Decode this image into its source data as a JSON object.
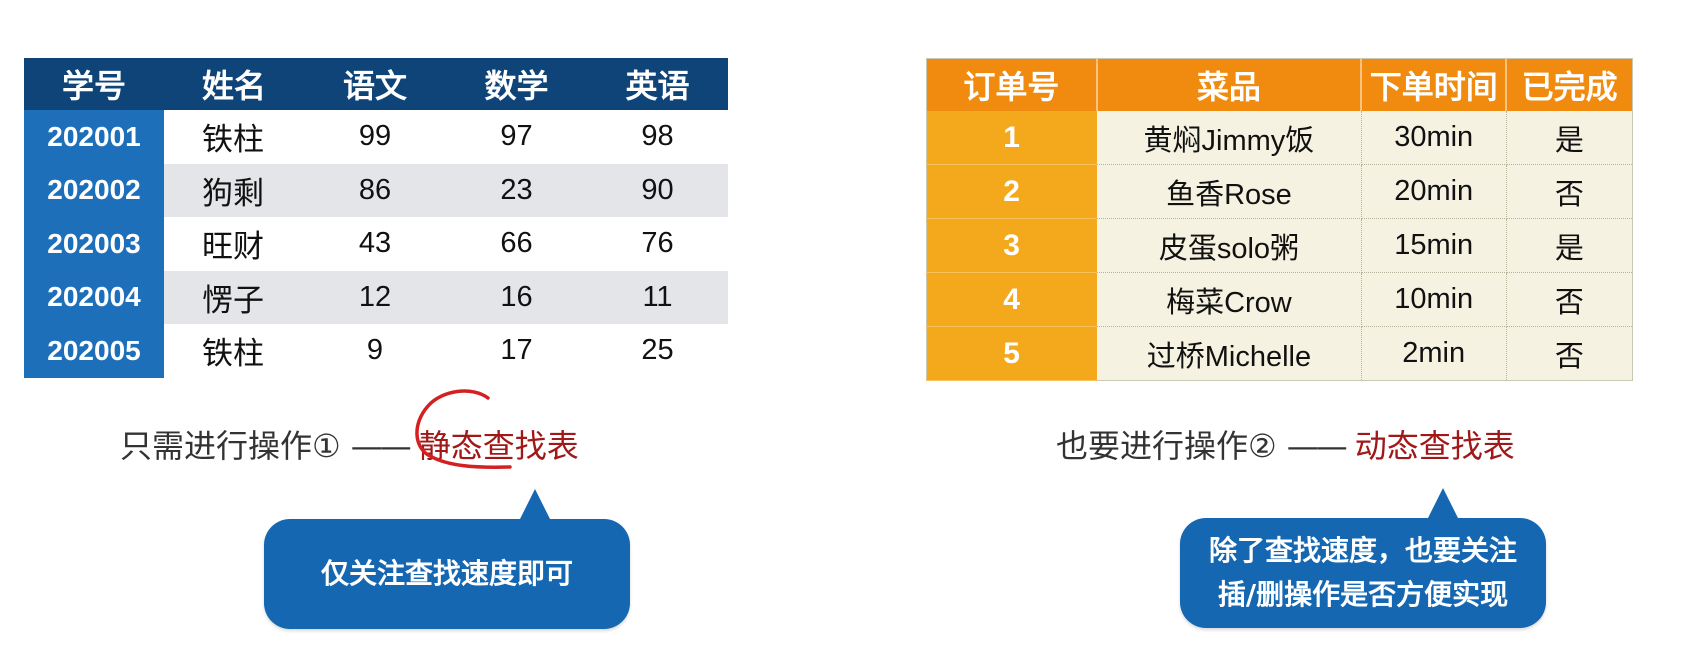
{
  "score_table": {
    "headers": [
      "学号",
      "姓名",
      "语文",
      "数学",
      "英语"
    ],
    "rows": [
      {
        "id": "202001",
        "name": "铁柱",
        "chinese": "99",
        "math": "97",
        "english": "98"
      },
      {
        "id": "202002",
        "name": "狗剩",
        "chinese": "86",
        "math": "23",
        "english": "90"
      },
      {
        "id": "202003",
        "name": "旺财",
        "chinese": "43",
        "math": "66",
        "english": "76"
      },
      {
        "id": "202004",
        "name": "愣子",
        "chinese": "12",
        "math": "16",
        "english": "11"
      },
      {
        "id": "202005",
        "name": "铁柱",
        "chinese": "9",
        "math": "17",
        "english": "25"
      }
    ]
  },
  "order_table": {
    "headers": [
      "订单号",
      "菜品",
      "下单时间",
      "已完成"
    ],
    "rows": [
      {
        "order": "1",
        "dish": "黄焖Jimmy饭",
        "time": "30min",
        "done": "是"
      },
      {
        "order": "2",
        "dish": "鱼香Rose",
        "time": "20min",
        "done": "否"
      },
      {
        "order": "3",
        "dish": "皮蛋solo粥",
        "time": "15min",
        "done": "是"
      },
      {
        "order": "4",
        "dish": "梅菜Crow",
        "time": "10min",
        "done": "否"
      },
      {
        "order": "5",
        "dish": "过桥Michelle",
        "time": "2min",
        "done": "否"
      }
    ]
  },
  "captions": {
    "left": {
      "text": "只需进行操作①",
      "dash": "——",
      "highlight": "静态查找表"
    },
    "right": {
      "text": "也要进行操作②",
      "dash": "——",
      "highlight": "动态查找表"
    }
  },
  "callouts": {
    "left": "仅关注查找速度即可",
    "right_line1": "除了查找速度，也要关注",
    "right_line2": "插/删操作是否方便实现"
  },
  "colors": {
    "left_header": "#0f4478",
    "left_id_column": "#1d6fba",
    "stripe": "#e4e5e9",
    "right_header": "#f18b10",
    "right_order_column": "#f4a81b",
    "right_body": "#f6f2e2",
    "highlight_text": "#a01818",
    "callout": "#1467b0",
    "annotation": "#d42020"
  }
}
